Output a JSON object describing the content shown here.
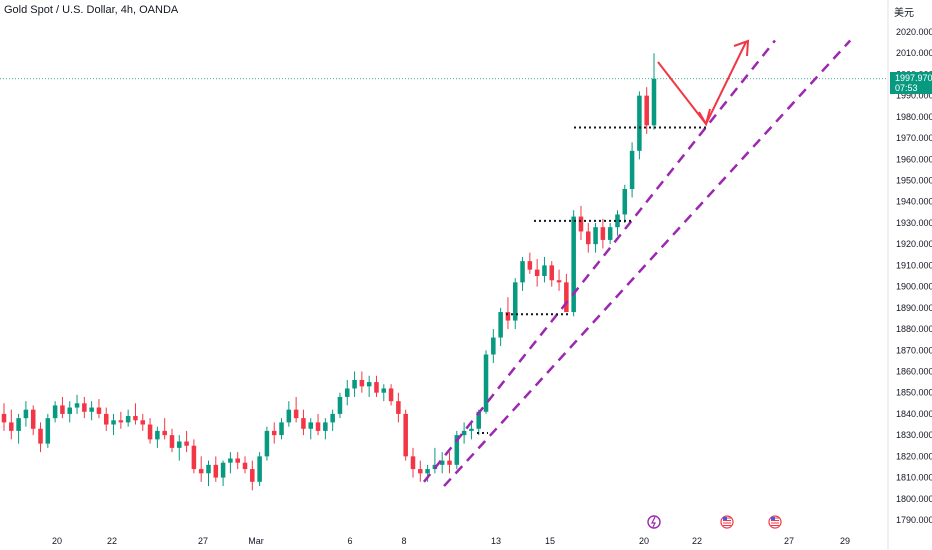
{
  "header": {
    "title": "Gold Spot / U.S. Dollar, 4h, OANDA",
    "currency": "美元"
  },
  "price_label": {
    "price": "1997.970",
    "countdown": "07:53",
    "color": "#089981"
  },
  "colors": {
    "up": "#089981",
    "down": "#f23645",
    "channel": "#9c27b0",
    "arrow": "#f23645",
    "level_line": "#131722"
  },
  "event_icons": [
    "lightning-icon",
    "us-flag-icon",
    "us-flag-icon"
  ],
  "chart_data": {
    "type": "candlestick",
    "title": "Gold Spot / U.S. Dollar, 4h, OANDA",
    "y_axis": {
      "unit": "美元",
      "ylim": [
        1785,
        2025
      ],
      "ticks": [
        "1790.000",
        "1800.000",
        "1810.000",
        "1820.000",
        "1830.000",
        "1840.000",
        "1850.000",
        "1860.000",
        "1870.000",
        "1880.000",
        "1890.000",
        "1900.000",
        "1910.000",
        "1920.000",
        "1930.000",
        "1940.000",
        "1950.000",
        "1960.000",
        "1970.000",
        "1980.000",
        "1990.000",
        "2000.000",
        "2010.000",
        "2020.000"
      ]
    },
    "x_axis": {
      "ticks": [
        "20",
        "22",
        "27",
        "Mar",
        "6",
        "8",
        "13",
        "15",
        "20",
        "22",
        "27",
        "29"
      ]
    },
    "candles": [
      [
        1840,
        1845,
        1832,
        1836
      ],
      [
        1836,
        1842,
        1828,
        1832
      ],
      [
        1832,
        1840,
        1826,
        1838
      ],
      [
        1838,
        1846,
        1834,
        1842
      ],
      [
        1842,
        1844,
        1830,
        1833
      ],
      [
        1833,
        1836,
        1822,
        1826
      ],
      [
        1826,
        1840,
        1824,
        1838
      ],
      [
        1838,
        1846,
        1836,
        1844
      ],
      [
        1844,
        1848,
        1838,
        1840
      ],
      [
        1840,
        1846,
        1836,
        1843
      ],
      [
        1843,
        1849,
        1840,
        1845
      ],
      [
        1845,
        1848,
        1838,
        1841
      ],
      [
        1841,
        1846,
        1837,
        1843
      ],
      [
        1843,
        1847,
        1838,
        1840
      ],
      [
        1840,
        1843,
        1832,
        1835
      ],
      [
        1835,
        1840,
        1830,
        1837
      ],
      [
        1837,
        1841,
        1833,
        1836
      ],
      [
        1836,
        1842,
        1834,
        1839
      ],
      [
        1839,
        1845,
        1835,
        1837
      ],
      [
        1837,
        1840,
        1832,
        1835
      ],
      [
        1835,
        1838,
        1826,
        1828
      ],
      [
        1828,
        1834,
        1824,
        1832
      ],
      [
        1832,
        1838,
        1828,
        1830
      ],
      [
        1830,
        1833,
        1822,
        1824
      ],
      [
        1824,
        1830,
        1818,
        1827
      ],
      [
        1827,
        1832,
        1822,
        1825
      ],
      [
        1825,
        1828,
        1812,
        1814
      ],
      [
        1814,
        1820,
        1808,
        1812
      ],
      [
        1812,
        1818,
        1806,
        1816
      ],
      [
        1816,
        1820,
        1808,
        1810
      ],
      [
        1810,
        1818,
        1806,
        1817
      ],
      [
        1817,
        1822,
        1812,
        1819
      ],
      [
        1819,
        1822,
        1814,
        1817
      ],
      [
        1817,
        1820,
        1812,
        1814
      ],
      [
        1814,
        1818,
        1804,
        1808
      ],
      [
        1808,
        1822,
        1806,
        1820
      ],
      [
        1820,
        1834,
        1818,
        1832
      ],
      [
        1832,
        1836,
        1826,
        1830
      ],
      [
        1830,
        1838,
        1828,
        1836
      ],
      [
        1836,
        1846,
        1834,
        1842
      ],
      [
        1842,
        1848,
        1836,
        1838
      ],
      [
        1838,
        1842,
        1830,
        1833
      ],
      [
        1833,
        1838,
        1828,
        1836
      ],
      [
        1836,
        1840,
        1830,
        1832
      ],
      [
        1832,
        1838,
        1828,
        1836
      ],
      [
        1836,
        1842,
        1832,
        1840
      ],
      [
        1840,
        1850,
        1838,
        1848
      ],
      [
        1848,
        1856,
        1844,
        1852
      ],
      [
        1852,
        1860,
        1848,
        1856
      ],
      [
        1856,
        1860,
        1850,
        1853
      ],
      [
        1853,
        1858,
        1848,
        1855
      ],
      [
        1855,
        1858,
        1848,
        1850
      ],
      [
        1850,
        1854,
        1846,
        1852
      ],
      [
        1852,
        1854,
        1844,
        1846
      ],
      [
        1846,
        1850,
        1836,
        1840
      ],
      [
        1840,
        1842,
        1818,
        1820
      ],
      [
        1820,
        1824,
        1810,
        1814
      ],
      [
        1814,
        1818,
        1808,
        1812
      ],
      [
        1812,
        1816,
        1808,
        1814
      ],
      [
        1814,
        1824,
        1812,
        1816
      ],
      [
        1816,
        1822,
        1812,
        1818
      ],
      [
        1818,
        1822,
        1812,
        1816
      ],
      [
        1816,
        1832,
        1814,
        1830
      ],
      [
        1830,
        1836,
        1826,
        1832
      ],
      [
        1832,
        1836,
        1828,
        1833
      ],
      [
        1833,
        1842,
        1830,
        1841
      ],
      [
        1841,
        1870,
        1840,
        1868
      ],
      [
        1868,
        1880,
        1864,
        1876
      ],
      [
        1876,
        1890,
        1872,
        1888
      ],
      [
        1888,
        1895,
        1880,
        1884
      ],
      [
        1884,
        1904,
        1880,
        1902
      ],
      [
        1902,
        1914,
        1898,
        1912
      ],
      [
        1912,
        1916,
        1906,
        1908
      ],
      [
        1908,
        1913,
        1900,
        1905
      ],
      [
        1905,
        1914,
        1902,
        1910
      ],
      [
        1910,
        1912,
        1900,
        1903
      ],
      [
        1903,
        1908,
        1898,
        1902
      ],
      [
        1902,
        1906,
        1888,
        1888
      ],
      [
        1888,
        1936,
        1886,
        1933
      ],
      [
        1933,
        1938,
        1922,
        1926
      ],
      [
        1926,
        1930,
        1916,
        1920
      ],
      [
        1920,
        1930,
        1916,
        1928
      ],
      [
        1928,
        1932,
        1918,
        1922
      ],
      [
        1922,
        1930,
        1920,
        1928
      ],
      [
        1928,
        1936,
        1924,
        1934
      ],
      [
        1934,
        1948,
        1930,
        1946
      ],
      [
        1946,
        1968,
        1942,
        1964
      ],
      [
        1964,
        1992,
        1960,
        1990
      ],
      [
        1990,
        1994,
        1972,
        1976
      ],
      [
        1976,
        2010,
        1974,
        1998
      ]
    ],
    "channel_lines": [
      {
        "name": "upper-channel",
        "from": [
          1818,
          1808
        ],
        "to": [
          1958,
          2016
        ]
      },
      {
        "name": "lower-channel",
        "from": [
          1826,
          1806
        ],
        "to": [
          1988,
          2016
        ]
      }
    ],
    "levels": [
      1831,
      1887,
      1931,
      1975
    ],
    "arrow_path": [
      [
        1994,
        2003
      ],
      [
        2001,
        1977
      ],
      [
        2008,
        2016
      ]
    ]
  }
}
